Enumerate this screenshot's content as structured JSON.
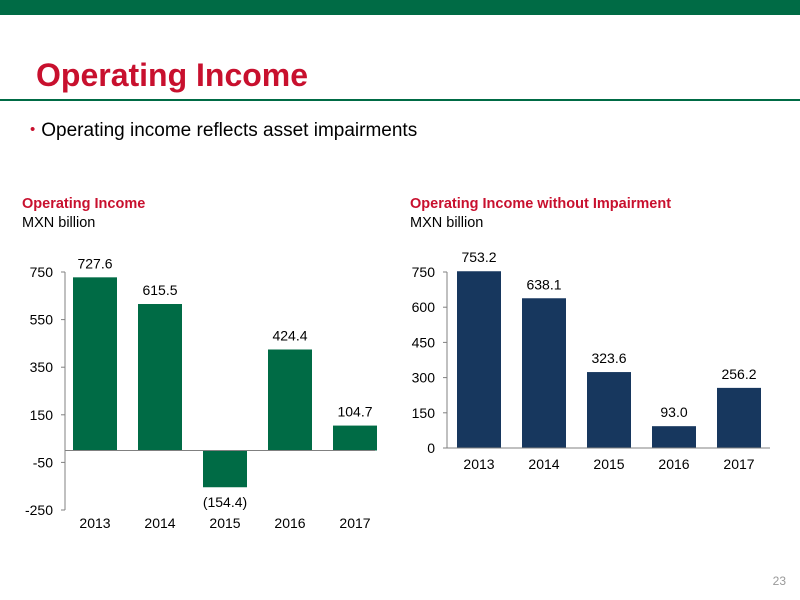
{
  "slide": {
    "title": "Operating Income",
    "bullet": "Operating income reflects asset impairments",
    "page_number": "23"
  },
  "colors": {
    "brand_green": "#006B45",
    "title_red": "#C8102E",
    "navy": "#17375E"
  },
  "chart_data": [
    {
      "type": "bar",
      "title": "Operating Income",
      "subtitle": "MXN billion",
      "categories": [
        "2013",
        "2014",
        "2015",
        "2016",
        "2017"
      ],
      "values": [
        727.6,
        615.5,
        -154.4,
        424.4,
        104.7
      ],
      "value_labels": [
        "727.6",
        "615.5",
        "(154.4)",
        "424.4",
        "104.7"
      ],
      "yticks": [
        750,
        550,
        350,
        150,
        -50,
        -250
      ],
      "ylim": [
        -250,
        750
      ],
      "grid": false,
      "legend": "none",
      "bar_color": "#006B45"
    },
    {
      "type": "bar",
      "title": "Operating Income without Impairment",
      "subtitle": "MXN billion",
      "categories": [
        "2013",
        "2014",
        "2015",
        "2016",
        "2017"
      ],
      "values": [
        753.2,
        638.1,
        323.6,
        93.0,
        256.2
      ],
      "value_labels": [
        "753.2",
        "638.1",
        "323.6",
        "93.0",
        "256.2"
      ],
      "yticks": [
        750,
        600,
        450,
        300,
        150,
        0
      ],
      "ylim": [
        0,
        750
      ],
      "grid": false,
      "legend": "none",
      "bar_color": "#17375E"
    }
  ]
}
